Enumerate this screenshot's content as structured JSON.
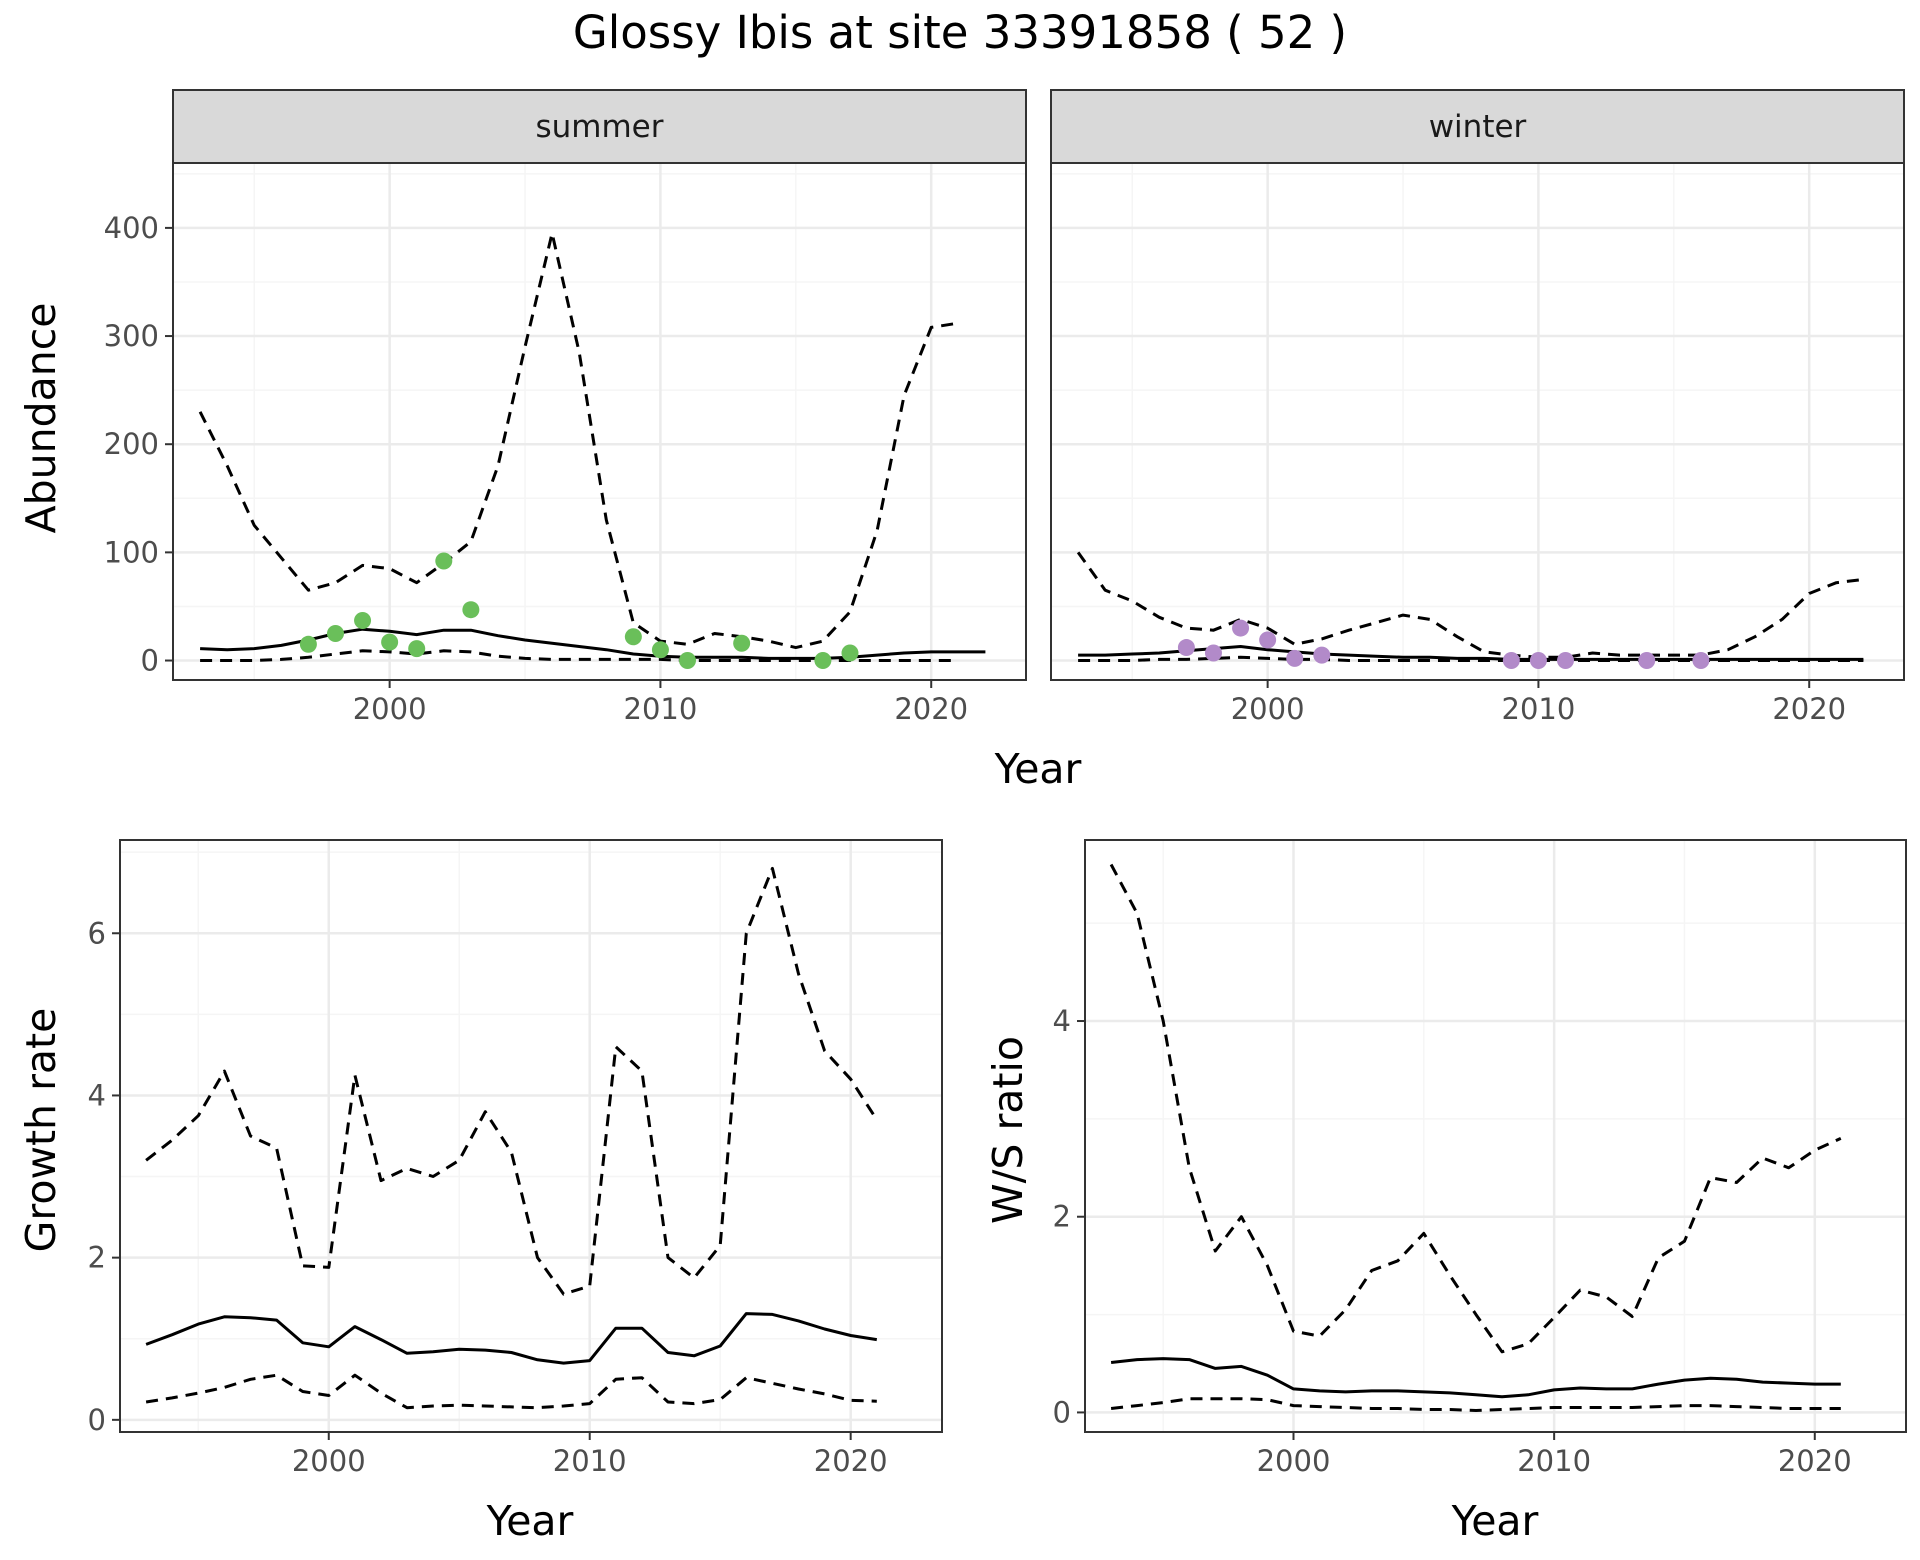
{
  "title": "Glossy Ibis at site 33391858 ( 52 )",
  "colors": {
    "summer_points": "#6abf5a",
    "winter_points": "#b28ac9",
    "lines": "#000000",
    "strip_bg": "#d9d9d9",
    "grid_major": "#ebebeb",
    "grid_minor": "#f5f5f5"
  },
  "chart_data": [
    {
      "id": "abundance-summer",
      "type": "line",
      "facet": "summer",
      "xlabel": "Year",
      "ylabel": "Abundance",
      "xlim": [
        1992,
        2023.5
      ],
      "ylim": [
        -18,
        460
      ],
      "xticks": [
        2000,
        2010,
        2020
      ],
      "yticks": [
        0,
        100,
        200,
        300,
        400
      ],
      "x": [
        1993,
        1994,
        1995,
        1996,
        1997,
        1998,
        1999,
        2000,
        2001,
        2002,
        2003,
        2004,
        2005,
        2006,
        2007,
        2008,
        2009,
        2010,
        2011,
        2012,
        2013,
        2014,
        2015,
        2016,
        2017,
        2018,
        2019,
        2020,
        2021,
        2022
      ],
      "series": [
        {
          "role": "estimate",
          "style": "solid",
          "values": [
            11,
            10,
            11,
            14,
            19,
            25,
            29,
            27,
            24,
            28,
            28,
            23,
            19,
            16,
            13,
            10,
            6,
            4,
            3,
            3,
            3,
            2,
            2,
            2,
            3,
            5,
            7,
            8,
            8,
            8
          ]
        },
        {
          "role": "upper",
          "style": "dashed",
          "values": [
            230,
            180,
            125,
            95,
            65,
            72,
            88,
            85,
            72,
            90,
            110,
            180,
            290,
            395,
            285,
            130,
            35,
            18,
            15,
            25,
            22,
            18,
            12,
            18,
            45,
            120,
            245,
            308,
            312,
            null
          ]
        },
        {
          "role": "lower",
          "style": "dashed",
          "values": [
            0,
            0,
            0,
            1,
            3,
            6,
            9,
            8,
            6,
            9,
            8,
            4,
            2,
            1,
            1,
            1,
            1,
            1,
            0,
            0,
            0,
            0,
            0,
            0,
            0,
            0,
            0,
            0,
            0,
            null
          ]
        }
      ],
      "points": {
        "x": [
          1997,
          1998,
          1999,
          2000,
          2001,
          2002,
          2003,
          2009,
          2010,
          2011,
          2013,
          2016,
          2017
        ],
        "y": [
          15,
          25,
          37,
          17,
          11,
          92,
          47,
          22,
          10,
          0,
          16,
          0,
          7
        ]
      }
    },
    {
      "id": "abundance-winter",
      "type": "line",
      "facet": "winter",
      "xlabel": "Year",
      "ylabel": "",
      "xlim": [
        1992,
        2023.5
      ],
      "ylim": [
        -18,
        460
      ],
      "xticks": [
        2000,
        2010,
        2020
      ],
      "yticks": [],
      "x": [
        1993,
        1994,
        1995,
        1996,
        1997,
        1998,
        1999,
        2000,
        2001,
        2002,
        2003,
        2004,
        2005,
        2006,
        2007,
        2008,
        2009,
        2010,
        2011,
        2012,
        2013,
        2014,
        2015,
        2016,
        2017,
        2018,
        2019,
        2020,
        2021,
        2022
      ],
      "series": [
        {
          "role": "estimate",
          "style": "solid",
          "values": [
            5,
            5,
            6,
            7,
            9,
            11,
            13,
            10,
            8,
            6,
            5,
            4,
            3,
            3,
            2,
            2,
            1,
            1,
            1,
            1,
            1,
            1,
            1,
            1,
            1,
            1,
            1,
            1,
            1,
            1
          ]
        },
        {
          "role": "upper",
          "style": "dashed",
          "values": [
            100,
            65,
            55,
            40,
            30,
            28,
            38,
            30,
            15,
            20,
            28,
            35,
            42,
            38,
            22,
            8,
            5,
            3,
            3,
            7,
            5,
            5,
            5,
            5,
            10,
            22,
            38,
            62,
            72,
            75
          ]
        },
        {
          "role": "lower",
          "style": "dashed",
          "values": [
            0,
            0,
            0,
            1,
            1,
            2,
            3,
            2,
            1,
            1,
            0,
            0,
            0,
            0,
            0,
            0,
            0,
            0,
            0,
            0,
            0,
            0,
            0,
            0,
            0,
            0,
            0,
            0,
            0,
            0
          ]
        }
      ],
      "points": {
        "x": [
          1997,
          1998,
          1999,
          2000,
          2001,
          2002,
          2009,
          2010,
          2011,
          2014,
          2016
        ],
        "y": [
          12,
          7,
          30,
          19,
          2,
          5,
          0,
          0,
          0,
          0,
          0
        ]
      }
    },
    {
      "id": "growth-rate",
      "type": "line",
      "xlabel": "Year",
      "ylabel": "Growth rate",
      "xlim": [
        1992,
        2023.5
      ],
      "ylim": [
        -0.15,
        7.15
      ],
      "xticks": [
        2000,
        2010,
        2020
      ],
      "yticks": [
        0,
        2,
        4,
        6
      ],
      "x": [
        1993,
        1994,
        1995,
        1996,
        1997,
        1998,
        1999,
        2000,
        2001,
        2002,
        2003,
        2004,
        2005,
        2006,
        2007,
        2008,
        2009,
        2010,
        2011,
        2012,
        2013,
        2014,
        2015,
        2016,
        2017,
        2018,
        2019,
        2020,
        2021
      ],
      "series": [
        {
          "role": "estimate",
          "style": "solid",
          "values": [
            0.93,
            1.05,
            1.18,
            1.27,
            1.26,
            1.23,
            0.95,
            0.9,
            1.15,
            0.99,
            0.82,
            0.84,
            0.87,
            0.86,
            0.83,
            0.74,
            0.7,
            0.73,
            1.13,
            1.13,
            0.83,
            0.79,
            0.91,
            1.31,
            1.3,
            1.22,
            1.12,
            1.04,
            0.99
          ]
        },
        {
          "role": "upper",
          "style": "dashed",
          "values": [
            3.2,
            3.45,
            3.75,
            4.3,
            3.5,
            3.35,
            1.9,
            1.88,
            4.25,
            2.95,
            3.1,
            3.0,
            3.2,
            3.8,
            3.3,
            2.0,
            1.55,
            1.65,
            4.6,
            4.3,
            2.0,
            1.75,
            2.15,
            6.0,
            6.8,
            5.5,
            4.55,
            4.2,
            3.7
          ]
        },
        {
          "role": "lower",
          "style": "dashed",
          "values": [
            0.22,
            0.27,
            0.33,
            0.4,
            0.5,
            0.55,
            0.35,
            0.3,
            0.55,
            0.33,
            0.15,
            0.17,
            0.18,
            0.17,
            0.16,
            0.15,
            0.17,
            0.2,
            0.5,
            0.52,
            0.22,
            0.2,
            0.25,
            0.52,
            0.45,
            0.38,
            0.32,
            0.24,
            0.23
          ]
        }
      ]
    },
    {
      "id": "ws-ratio",
      "type": "line",
      "xlabel": "Year",
      "ylabel": "W/S ratio",
      "xlim": [
        1992,
        2023.5
      ],
      "ylim": [
        -0.2,
        5.85
      ],
      "xticks": [
        2000,
        2010,
        2020
      ],
      "yticks": [
        0,
        2,
        4
      ],
      "x": [
        1993,
        1994,
        1995,
        1996,
        1997,
        1998,
        1999,
        2000,
        2001,
        2002,
        2003,
        2004,
        2005,
        2006,
        2007,
        2008,
        2009,
        2010,
        2011,
        2012,
        2013,
        2014,
        2015,
        2016,
        2017,
        2018,
        2019,
        2020,
        2021
      ],
      "series": [
        {
          "role": "estimate",
          "style": "solid",
          "values": [
            0.51,
            0.54,
            0.55,
            0.54,
            0.45,
            0.47,
            0.38,
            0.24,
            0.22,
            0.21,
            0.22,
            0.22,
            0.21,
            0.2,
            0.18,
            0.16,
            0.18,
            0.23,
            0.25,
            0.24,
            0.24,
            0.29,
            0.33,
            0.35,
            0.34,
            0.31,
            0.3,
            0.29,
            0.29
          ]
        },
        {
          "role": "upper",
          "style": "dashed",
          "values": [
            5.6,
            5.1,
            4.0,
            2.5,
            1.65,
            2.0,
            1.5,
            0.83,
            0.78,
            1.05,
            1.45,
            1.55,
            1.83,
            1.4,
            1.0,
            0.62,
            0.7,
            0.97,
            1.25,
            1.18,
            0.98,
            1.58,
            1.75,
            2.4,
            2.35,
            2.6,
            2.5,
            2.68,
            2.8
          ]
        },
        {
          "role": "lower",
          "style": "dashed",
          "values": [
            0.04,
            0.07,
            0.1,
            0.14,
            0.14,
            0.14,
            0.13,
            0.07,
            0.06,
            0.05,
            0.04,
            0.04,
            0.03,
            0.03,
            0.02,
            0.03,
            0.04,
            0.05,
            0.05,
            0.05,
            0.05,
            0.06,
            0.07,
            0.07,
            0.06,
            0.05,
            0.04,
            0.04,
            0.04
          ]
        }
      ]
    }
  ],
  "panels": {
    "abundance_summer": {
      "strip": "summer",
      "xlabel": "Year",
      "ylabel": "Abundance"
    },
    "abundance_winter": {
      "strip": "winter"
    },
    "growth": {
      "xlabel": "Year",
      "ylabel": "Growth rate"
    },
    "ratio": {
      "xlabel": "Year",
      "ylabel": "W/S ratio"
    }
  }
}
